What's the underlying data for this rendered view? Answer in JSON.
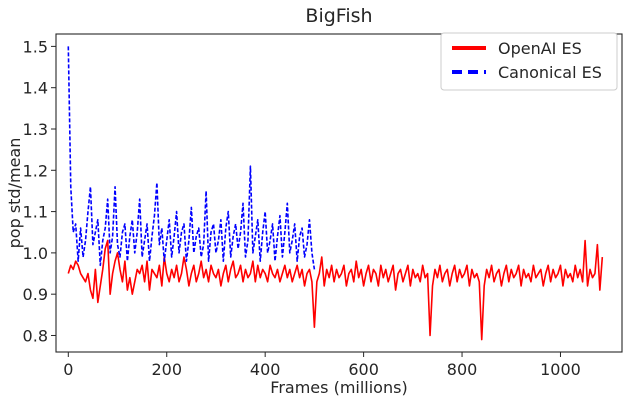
{
  "chart_data": {
    "type": "line",
    "title": "BigFish",
    "xlabel": "Frames (millions)",
    "ylabel": "pop std/mean",
    "xlim": [
      -25,
      1125
    ],
    "ylim": [
      0.76,
      1.53
    ],
    "xticks": [
      0,
      200,
      400,
      600,
      800,
      1000
    ],
    "yticks": [
      0.8,
      0.9,
      1.0,
      1.1,
      1.2,
      1.3,
      1.4,
      1.5
    ],
    "xtick_labels": [
      "0",
      "200",
      "400",
      "600",
      "800",
      "1000"
    ],
    "ytick_labels": [
      "0.8",
      "0.9",
      "1.0",
      "1.1",
      "1.2",
      "1.3",
      "1.4",
      "1.5"
    ],
    "grid": false,
    "legend_position": "top-right",
    "series": [
      {
        "name": "OpenAI ES",
        "color": "#ff0000",
        "style": "solid",
        "x_start": 0,
        "x_step": 5,
        "values": [
          0.95,
          0.97,
          0.96,
          0.98,
          0.97,
          0.95,
          0.94,
          0.93,
          0.95,
          0.91,
          0.89,
          0.96,
          0.88,
          0.92,
          0.96,
          1.01,
          1.03,
          0.9,
          0.95,
          0.98,
          1.0,
          0.96,
          0.93,
          0.98,
          0.91,
          0.94,
          0.9,
          0.93,
          0.96,
          0.95,
          0.97,
          0.93,
          0.98,
          0.91,
          0.96,
          0.95,
          0.94,
          0.97,
          0.92,
          0.99,
          0.95,
          0.93,
          0.96,
          0.94,
          0.97,
          0.93,
          0.95,
          0.99,
          0.96,
          0.92,
          0.95,
          0.97,
          0.93,
          0.95,
          0.98,
          0.94,
          0.96,
          0.93,
          0.97,
          0.95,
          0.94,
          0.96,
          0.92,
          0.95,
          0.97,
          0.93,
          0.96,
          0.98,
          0.94,
          0.95,
          0.97,
          0.93,
          0.96,
          0.94,
          0.95,
          0.98,
          0.93,
          0.97,
          0.94,
          0.96,
          0.95,
          0.93,
          0.97,
          0.95,
          0.94,
          0.96,
          0.93,
          0.95,
          0.97,
          0.94,
          0.96,
          0.93,
          0.95,
          0.97,
          0.94,
          0.96,
          0.92,
          0.95,
          0.96,
          0.93,
          0.82,
          0.93,
          0.95,
          0.99,
          0.92,
          0.96,
          0.94,
          0.97,
          0.93,
          0.96,
          0.94,
          0.95,
          0.97,
          0.92,
          0.95,
          0.96,
          0.93,
          0.98,
          0.94,
          0.96,
          0.92,
          0.95,
          0.97,
          0.93,
          0.96,
          0.95,
          0.92,
          0.97,
          0.94,
          0.96,
          0.93,
          0.95,
          0.97,
          0.91,
          0.95,
          0.96,
          0.93,
          0.95,
          0.97,
          0.92,
          0.96,
          0.94,
          0.95,
          0.93,
          0.97,
          0.94,
          0.95,
          0.8,
          0.92,
          0.96,
          0.94,
          0.97,
          0.93,
          0.95,
          0.96,
          0.92,
          0.95,
          0.97,
          0.93,
          0.96,
          0.94,
          0.95,
          0.97,
          0.92,
          0.96,
          0.94,
          0.95,
          0.93,
          0.79,
          0.92,
          0.96,
          0.94,
          0.97,
          0.93,
          0.95,
          0.96,
          0.92,
          0.95,
          0.97,
          0.93,
          0.96,
          0.94,
          0.95,
          0.97,
          0.92,
          0.96,
          0.94,
          0.95,
          0.93,
          0.97,
          0.94,
          0.95,
          0.96,
          0.92,
          0.95,
          0.97,
          0.93,
          0.96,
          0.94,
          0.95,
          0.97,
          0.92,
          0.96,
          0.94,
          0.95,
          0.93,
          0.97,
          0.94,
          0.96,
          0.93,
          1.03,
          0.92,
          0.96,
          0.94,
          0.95,
          1.02,
          0.91,
          0.99
        ]
      },
      {
        "name": "Canonical ES",
        "color": "#0000ff",
        "style": "dashed",
        "x_start": 0,
        "x_step": 5,
        "values": [
          1.5,
          1.16,
          1.05,
          1.07,
          0.98,
          1.06,
          0.99,
          1.03,
          1.1,
          1.16,
          1.02,
          1.05,
          1.08,
          0.97,
          1.03,
          1.06,
          1.13,
          1.0,
          1.04,
          1.16,
          1.02,
          0.99,
          1.05,
          1.07,
          0.98,
          1.04,
          1.08,
          1.0,
          1.05,
          1.13,
          0.99,
          1.03,
          1.07,
          0.98,
          1.04,
          1.09,
          1.17,
          1.02,
          1.06,
          0.98,
          1.03,
          1.08,
          0.99,
          1.04,
          1.1,
          1.0,
          1.05,
          1.07,
          0.98,
          1.03,
          1.11,
          1.0,
          1.04,
          1.06,
          0.99,
          1.02,
          1.15,
          0.98,
          1.05,
          1.07,
          1.0,
          1.03,
          1.08,
          0.98,
          1.06,
          1.1,
          0.99,
          1.04,
          1.07,
          1.01,
          1.05,
          1.12,
          0.99,
          1.03,
          1.21,
          1.0,
          1.04,
          1.08,
          0.98,
          1.05,
          1.1,
          1.0,
          1.03,
          1.07,
          0.98,
          1.04,
          1.09,
          0.99,
          1.05,
          1.12,
          1.0,
          1.03,
          1.07,
          0.98,
          1.04,
          1.06,
          0.99,
          1.02,
          1.08,
          1.0,
          0.96
        ]
      }
    ]
  }
}
